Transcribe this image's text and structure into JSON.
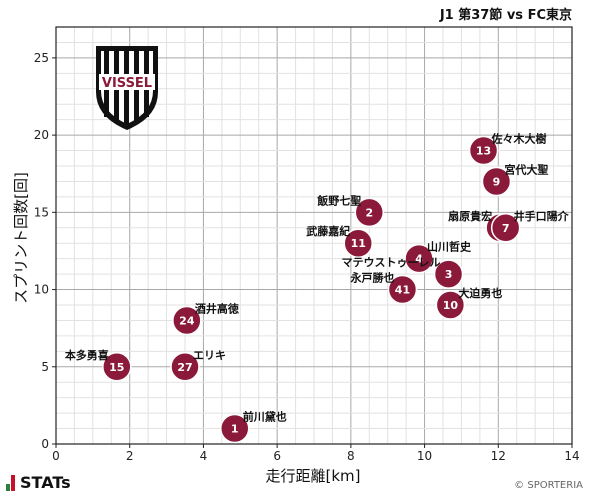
{
  "chart_data": {
    "type": "scatter",
    "title": "J1 第37節 vs FC東京",
    "xlabel": "走行距離[km]",
    "ylabel": "スプリント回数[回]",
    "xlim": [
      0,
      14
    ],
    "ylim": [
      0,
      27
    ],
    "xticks": [
      0,
      2,
      4,
      6,
      8,
      10,
      12,
      14
    ],
    "yticks": [
      0,
      5,
      10,
      15,
      20,
      25
    ],
    "grid": true,
    "marker_color": "#8b1a3a",
    "logo_text": "VISSEL",
    "points": [
      {
        "number": "1",
        "name": "前川黛也",
        "x": 4.85,
        "y": 1
      },
      {
        "number": "15",
        "name": "本多勇喜",
        "x": 1.65,
        "y": 5
      },
      {
        "number": "27",
        "name": "エリキ",
        "x": 3.5,
        "y": 5
      },
      {
        "number": "24",
        "name": "酒井高徳",
        "x": 3.55,
        "y": 8
      },
      {
        "number": "2",
        "name": "飯野七聖",
        "x": 8.5,
        "y": 15
      },
      {
        "number": "11",
        "name": "武藤嘉紀",
        "x": 8.2,
        "y": 13
      },
      {
        "number": "4",
        "name": "山川哲史",
        "x": 9.85,
        "y": 12
      },
      {
        "number": "41",
        "name": "永戸勝也",
        "x": 9.4,
        "y": 10
      },
      {
        "number": "3",
        "name": "マテウストゥーレル",
        "x": 10.65,
        "y": 11
      },
      {
        "number": "10",
        "name": "大迫勇也",
        "x": 10.7,
        "y": 9
      },
      {
        "number": "13",
        "name": "佐々木大樹",
        "x": 11.6,
        "y": 19
      },
      {
        "number": "9",
        "name": "宮代大聖",
        "x": 11.95,
        "y": 17
      },
      {
        "number": "6",
        "name": "扇原貴宏",
        "x": 12.05,
        "y": 14
      },
      {
        "number": "7",
        "name": "井手口陽介",
        "x": 12.2,
        "y": 14
      }
    ]
  },
  "footer": {
    "brand": "STATs",
    "copyright": "© SPORTERIA"
  }
}
